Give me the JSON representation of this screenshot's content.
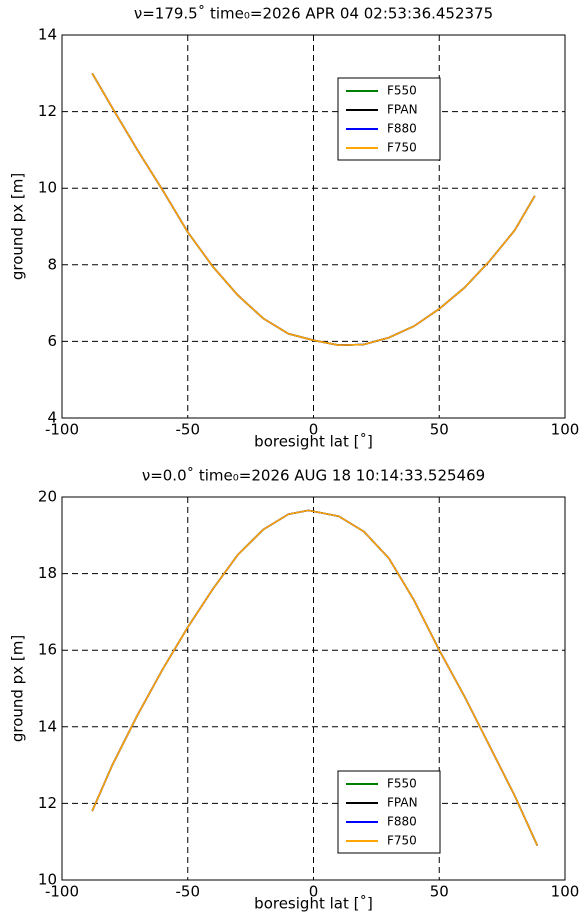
{
  "chart_data": [
    {
      "type": "line",
      "title": "ν=179.5˚   time₀=2026 APR 04 02:53:36.452375",
      "xlabel": "boresight lat [˚]",
      "ylabel": "ground px [m]",
      "x": [
        -88,
        -80,
        -70,
        -60,
        -50,
        -40,
        -30,
        -20,
        -10,
        0,
        10,
        20,
        30,
        40,
        50,
        60,
        70,
        80,
        88
      ],
      "series": [
        {
          "name": "F550",
          "color": "#008000",
          "values": [
            13.0,
            12.1,
            11.0,
            9.95,
            8.85,
            7.95,
            7.2,
            6.6,
            6.2,
            6.03,
            5.9,
            5.92,
            6.1,
            6.4,
            6.85,
            7.4,
            8.1,
            8.9,
            9.8
          ]
        },
        {
          "name": "FPAN",
          "color": "#000000",
          "values": [
            13.0,
            12.1,
            11.0,
            9.95,
            8.85,
            7.95,
            7.2,
            6.6,
            6.2,
            6.03,
            5.9,
            5.92,
            6.1,
            6.4,
            6.85,
            7.4,
            8.1,
            8.9,
            9.8
          ]
        },
        {
          "name": "F880",
          "color": "#0000ff",
          "values": [
            13.0,
            12.1,
            11.0,
            9.95,
            8.85,
            7.95,
            7.2,
            6.6,
            6.2,
            6.03,
            5.9,
            5.92,
            6.1,
            6.4,
            6.85,
            7.4,
            8.1,
            8.9,
            9.8
          ]
        },
        {
          "name": "F750",
          "color": "#ffa500",
          "values": [
            13.0,
            12.1,
            11.0,
            9.95,
            8.85,
            7.95,
            7.2,
            6.6,
            6.2,
            6.03,
            5.9,
            5.92,
            6.1,
            6.4,
            6.85,
            7.4,
            8.1,
            8.9,
            9.8
          ]
        }
      ],
      "xlim": [
        -100,
        100
      ],
      "ylim": [
        4,
        14
      ],
      "xticks": [
        -100,
        -50,
        0,
        50,
        100
      ],
      "yticks": [
        4,
        6,
        8,
        10,
        12,
        14
      ],
      "grid": true,
      "legend": "upper center"
    },
    {
      "type": "line",
      "title": "ν=0.0˚   time₀=2026 AUG 18 10:14:33.525469",
      "xlabel": "boresight lat [˚]",
      "ylabel": "ground px [m]",
      "x": [
        -88,
        -80,
        -70,
        -60,
        -50,
        -40,
        -30,
        -20,
        -10,
        -2,
        10,
        20,
        30,
        40,
        50,
        60,
        70,
        80,
        89
      ],
      "series": [
        {
          "name": "F550",
          "color": "#008000",
          "values": [
            11.8,
            13.0,
            14.3,
            15.5,
            16.6,
            17.6,
            18.5,
            19.15,
            19.55,
            19.65,
            19.5,
            19.1,
            18.4,
            17.3,
            16.0,
            14.8,
            13.5,
            12.2,
            10.9
          ]
        },
        {
          "name": "FPAN",
          "color": "#000000",
          "values": [
            11.8,
            13.0,
            14.3,
            15.5,
            16.6,
            17.6,
            18.5,
            19.15,
            19.55,
            19.65,
            19.5,
            19.1,
            18.4,
            17.3,
            16.0,
            14.8,
            13.5,
            12.2,
            10.9
          ]
        },
        {
          "name": "F880",
          "color": "#0000ff",
          "values": [
            11.8,
            13.0,
            14.3,
            15.5,
            16.6,
            17.6,
            18.5,
            19.15,
            19.55,
            19.65,
            19.5,
            19.1,
            18.4,
            17.3,
            16.0,
            14.8,
            13.5,
            12.2,
            10.9
          ]
        },
        {
          "name": "F750",
          "color": "#ffa500",
          "values": [
            11.8,
            13.0,
            14.3,
            15.5,
            16.6,
            17.6,
            18.5,
            19.15,
            19.55,
            19.65,
            19.5,
            19.1,
            18.4,
            17.3,
            16.0,
            14.8,
            13.5,
            12.2,
            10.9
          ]
        }
      ],
      "xlim": [
        -100,
        100
      ],
      "ylim": [
        10,
        20
      ],
      "xticks": [
        -100,
        -50,
        0,
        50,
        100
      ],
      "yticks": [
        10,
        12,
        14,
        16,
        18,
        20
      ],
      "grid": true,
      "legend": "lower center"
    }
  ]
}
